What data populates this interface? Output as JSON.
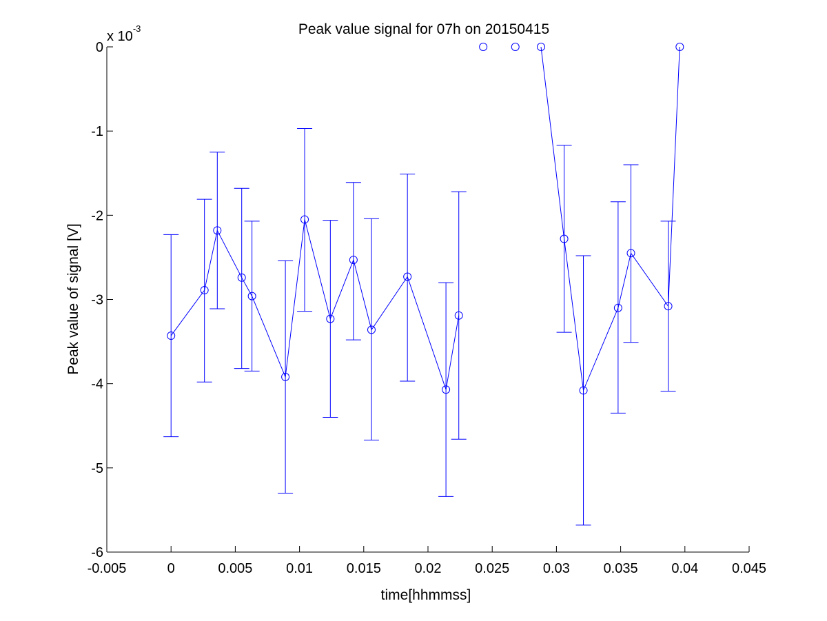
{
  "chart_data": {
    "type": "scatter",
    "title": "Peak value signal for 07h on 20150415",
    "xlabel": "time[hhmmss]",
    "ylabel": "Peak value of signal [V]",
    "y_exponent": {
      "base": "x 10",
      "power": "-3"
    },
    "xlim": [
      -0.005,
      0.045
    ],
    "ylim": [
      -6,
      0
    ],
    "y_scale_factor": 0.001,
    "xticks": [
      -0.005,
      0,
      0.005,
      0.01,
      0.015,
      0.02,
      0.025,
      0.03,
      0.035,
      0.04,
      0.045
    ],
    "xtick_labels": [
      "-0.005",
      "0",
      "0.005",
      "0.01",
      "0.015",
      "0.02",
      "0.025",
      "0.03",
      "0.035",
      "0.04",
      "0.045"
    ],
    "yticks": [
      -6,
      -5,
      -4,
      -3,
      -2,
      -1,
      0
    ],
    "ytick_labels": [
      "-6",
      "-5",
      "-4",
      "-3",
      "-2",
      "-1",
      "0"
    ],
    "grid": false,
    "legend": null,
    "color": "#0000ff",
    "marker": "circle",
    "series": [
      {
        "points": [
          {
            "x": 0.0,
            "y": -3.43,
            "lo": -4.63,
            "hi": -2.23
          },
          {
            "x": 0.0026,
            "y": -2.89,
            "lo": -3.98,
            "hi": -1.81
          },
          {
            "x": 0.0036,
            "y": -2.18,
            "lo": -3.11,
            "hi": -1.25
          },
          {
            "x": 0.0055,
            "y": -2.74,
            "lo": -3.82,
            "hi": -1.68
          },
          {
            "x": 0.0063,
            "y": -2.96,
            "lo": -3.85,
            "hi": -2.07
          },
          {
            "x": 0.0089,
            "y": -3.92,
            "lo": -5.3,
            "hi": -2.54
          },
          {
            "x": 0.0104,
            "y": -2.05,
            "lo": -3.14,
            "hi": -0.97
          },
          {
            "x": 0.0124,
            "y": -3.23,
            "lo": -4.4,
            "hi": -2.06
          },
          {
            "x": 0.0142,
            "y": -2.53,
            "lo": -3.48,
            "hi": -1.61
          },
          {
            "x": 0.0156,
            "y": -3.36,
            "lo": -4.67,
            "hi": -2.04
          },
          {
            "x": 0.0184,
            "y": -2.73,
            "lo": -3.97,
            "hi": -1.51
          },
          {
            "x": 0.0214,
            "y": -4.07,
            "lo": -5.34,
            "hi": -2.8
          },
          {
            "x": 0.0224,
            "y": -3.19,
            "lo": -4.66,
            "hi": -1.72
          },
          {
            "x": 0.0243,
            "y": 0.0
          },
          {
            "x": 0.0268,
            "y": 0.0
          },
          {
            "x": 0.0288,
            "y": 0.0
          },
          {
            "x": 0.0306,
            "y": -2.28,
            "lo": -3.39,
            "hi": -1.17
          },
          {
            "x": 0.0321,
            "y": -4.08,
            "lo": -5.68,
            "hi": -2.48
          },
          {
            "x": 0.0348,
            "y": -3.1,
            "lo": -4.35,
            "hi": -1.84
          },
          {
            "x": 0.0358,
            "y": -2.45,
            "lo": -3.51,
            "hi": -1.4
          },
          {
            "x": 0.0387,
            "y": -3.08,
            "lo": -4.09,
            "hi": -2.07
          },
          {
            "x": 0.0396,
            "y": 0.0
          }
        ],
        "line_segments": [
          [
            0,
            12
          ],
          [
            13,
            13
          ],
          [
            15,
            21
          ]
        ]
      }
    ]
  }
}
